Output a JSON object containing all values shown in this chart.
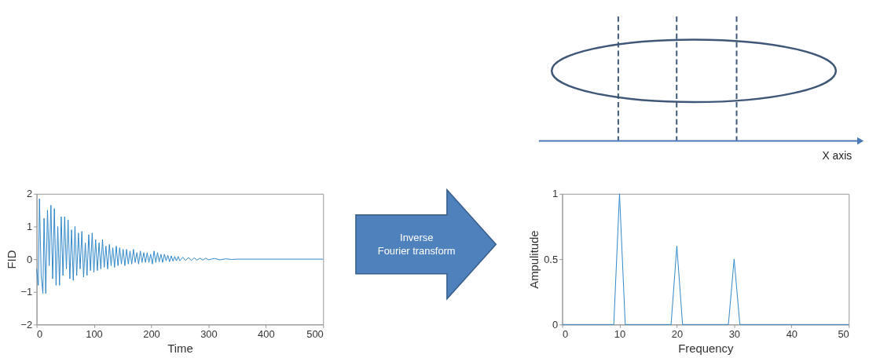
{
  "chart_data": [
    {
      "type": "line",
      "xlabel": "Time",
      "ylabel": "FID",
      "xlim": [
        0,
        500
      ],
      "ylim": [
        -2,
        2
      ],
      "xticks": [
        0,
        100,
        200,
        300,
        400,
        500
      ],
      "yticks": [
        -2,
        -1,
        0,
        1,
        2
      ],
      "grid": false,
      "legend": false,
      "x": [
        0,
        3,
        5,
        8,
        11,
        13,
        16,
        19,
        22,
        25,
        28,
        31,
        34,
        37,
        40,
        43,
        46,
        49,
        52,
        55,
        58,
        61,
        64,
        67,
        70,
        73,
        76,
        79,
        82,
        85,
        88,
        91,
        94,
        97,
        100,
        103,
        106,
        109,
        112,
        115,
        118,
        121,
        124,
        127,
        130,
        133,
        136,
        139,
        142,
        145,
        148,
        151,
        154,
        157,
        160,
        163,
        166,
        169,
        172,
        175,
        178,
        181,
        184,
        187,
        190,
        193,
        196,
        199,
        202,
        205,
        208,
        211,
        214,
        217,
        220,
        223,
        226,
        229,
        232,
        235,
        238,
        241,
        244,
        247,
        250,
        255,
        260,
        265,
        270,
        275,
        280,
        285,
        290,
        295,
        300,
        310,
        320,
        330,
        340,
        350,
        500
      ],
      "series": [
        {
          "color": "#2f87c8",
          "values": [
            -0.3,
            -0.8,
            1.85,
            -0.5,
            -1.05,
            1.25,
            -1.05,
            1.5,
            -0.2,
            1.65,
            -0.6,
            1.55,
            -0.8,
            1.0,
            -0.8,
            1.3,
            -0.5,
            1.3,
            -0.3,
            1.2,
            -0.6,
            0.9,
            -0.65,
            1.0,
            -0.5,
            0.8,
            -0.3,
            0.85,
            -0.55,
            0.5,
            -0.5,
            0.75,
            -0.35,
            0.8,
            -0.4,
            0.6,
            -0.35,
            0.5,
            -0.3,
            0.6,
            -0.25,
            0.4,
            -0.3,
            0.45,
            -0.2,
            0.35,
            -0.25,
            0.4,
            -0.2,
            0.35,
            -0.15,
            0.3,
            -0.2,
            0.3,
            -0.15,
            0.25,
            -0.15,
            0.3,
            -0.1,
            0.2,
            -0.15,
            0.25,
            -0.1,
            0.2,
            -0.1,
            0.2,
            -0.1,
            0.15,
            -0.15,
            0.25,
            -0.1,
            0.2,
            -0.08,
            0.15,
            -0.1,
            0.15,
            -0.05,
            0.12,
            -0.08,
            0.1,
            -0.06,
            0.08,
            -0.05,
            0.08,
            -0.05,
            0.06,
            -0.04,
            0.05,
            -0.04,
            0.04,
            -0.03,
            0.03,
            -0.03,
            0.03,
            -0.02,
            0.02,
            -0.02,
            0.01,
            -0.01,
            0,
            0
          ]
        }
      ],
      "annotations": [
        "Inverse Fourier transform"
      ]
    },
    {
      "type": "line",
      "xlabel": "Frequency",
      "ylabel": "Ampulitude",
      "xlim": [
        0,
        50
      ],
      "ylim": [
        0,
        1
      ],
      "xticks": [
        0,
        10,
        20,
        30,
        40,
        50
      ],
      "yticks": [
        0,
        0.5,
        1
      ],
      "grid": false,
      "legend": false,
      "x": [
        0,
        9,
        10,
        11,
        19,
        20,
        21,
        29,
        30,
        31,
        50
      ],
      "series": [
        {
          "color": "#2f87c8",
          "values": [
            0,
            0,
            1,
            0,
            0,
            0.6,
            0,
            0,
            0.5,
            0,
            0
          ]
        }
      ],
      "annotations": [
        "X axis"
      ]
    }
  ]
}
